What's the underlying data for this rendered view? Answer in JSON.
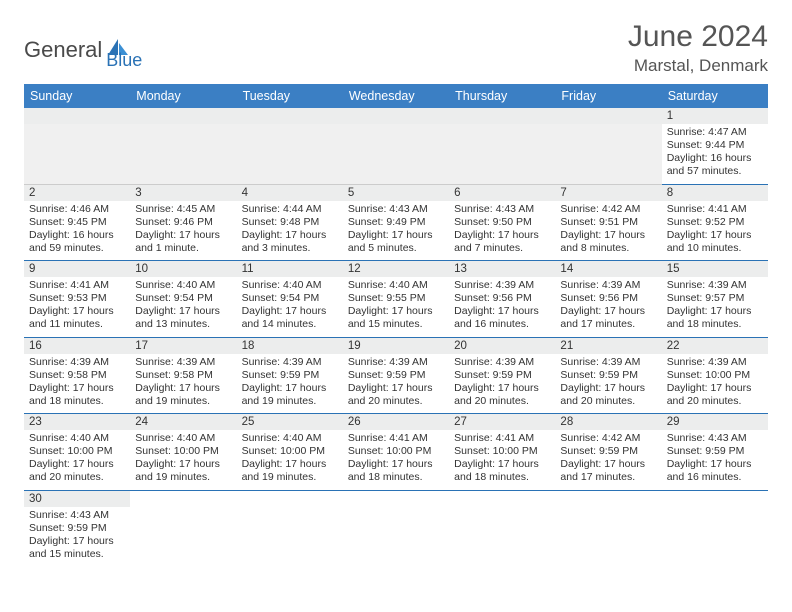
{
  "logo": {
    "text1": "General",
    "text2": "Blue"
  },
  "title": "June 2024",
  "location": "Marstal, Denmark",
  "colors": {
    "header_bg": "#3b7fc4",
    "header_text": "#ffffff",
    "daynum_bg": "#eceded",
    "border": "#2a72b5",
    "empty_bg": "#f0f0f0",
    "logo_gray": "#4a4a4a",
    "logo_blue": "#2a72b5"
  },
  "weekdays": [
    "Sunday",
    "Monday",
    "Tuesday",
    "Wednesday",
    "Thursday",
    "Friday",
    "Saturday"
  ],
  "blank_cells_before": 6,
  "days": [
    {
      "n": 1,
      "sunrise": "4:47 AM",
      "sunset": "9:44 PM",
      "daylight": "16 hours and 57 minutes."
    },
    {
      "n": 2,
      "sunrise": "4:46 AM",
      "sunset": "9:45 PM",
      "daylight": "16 hours and 59 minutes."
    },
    {
      "n": 3,
      "sunrise": "4:45 AM",
      "sunset": "9:46 PM",
      "daylight": "17 hours and 1 minute."
    },
    {
      "n": 4,
      "sunrise": "4:44 AM",
      "sunset": "9:48 PM",
      "daylight": "17 hours and 3 minutes."
    },
    {
      "n": 5,
      "sunrise": "4:43 AM",
      "sunset": "9:49 PM",
      "daylight": "17 hours and 5 minutes."
    },
    {
      "n": 6,
      "sunrise": "4:43 AM",
      "sunset": "9:50 PM",
      "daylight": "17 hours and 7 minutes."
    },
    {
      "n": 7,
      "sunrise": "4:42 AM",
      "sunset": "9:51 PM",
      "daylight": "17 hours and 8 minutes."
    },
    {
      "n": 8,
      "sunrise": "4:41 AM",
      "sunset": "9:52 PM",
      "daylight": "17 hours and 10 minutes."
    },
    {
      "n": 9,
      "sunrise": "4:41 AM",
      "sunset": "9:53 PM",
      "daylight": "17 hours and 11 minutes."
    },
    {
      "n": 10,
      "sunrise": "4:40 AM",
      "sunset": "9:54 PM",
      "daylight": "17 hours and 13 minutes."
    },
    {
      "n": 11,
      "sunrise": "4:40 AM",
      "sunset": "9:54 PM",
      "daylight": "17 hours and 14 minutes."
    },
    {
      "n": 12,
      "sunrise": "4:40 AM",
      "sunset": "9:55 PM",
      "daylight": "17 hours and 15 minutes."
    },
    {
      "n": 13,
      "sunrise": "4:39 AM",
      "sunset": "9:56 PM",
      "daylight": "17 hours and 16 minutes."
    },
    {
      "n": 14,
      "sunrise": "4:39 AM",
      "sunset": "9:56 PM",
      "daylight": "17 hours and 17 minutes."
    },
    {
      "n": 15,
      "sunrise": "4:39 AM",
      "sunset": "9:57 PM",
      "daylight": "17 hours and 18 minutes."
    },
    {
      "n": 16,
      "sunrise": "4:39 AM",
      "sunset": "9:58 PM",
      "daylight": "17 hours and 18 minutes."
    },
    {
      "n": 17,
      "sunrise": "4:39 AM",
      "sunset": "9:58 PM",
      "daylight": "17 hours and 19 minutes."
    },
    {
      "n": 18,
      "sunrise": "4:39 AM",
      "sunset": "9:59 PM",
      "daylight": "17 hours and 19 minutes."
    },
    {
      "n": 19,
      "sunrise": "4:39 AM",
      "sunset": "9:59 PM",
      "daylight": "17 hours and 20 minutes."
    },
    {
      "n": 20,
      "sunrise": "4:39 AM",
      "sunset": "9:59 PM",
      "daylight": "17 hours and 20 minutes."
    },
    {
      "n": 21,
      "sunrise": "4:39 AM",
      "sunset": "9:59 PM",
      "daylight": "17 hours and 20 minutes."
    },
    {
      "n": 22,
      "sunrise": "4:39 AM",
      "sunset": "10:00 PM",
      "daylight": "17 hours and 20 minutes."
    },
    {
      "n": 23,
      "sunrise": "4:40 AM",
      "sunset": "10:00 PM",
      "daylight": "17 hours and 20 minutes."
    },
    {
      "n": 24,
      "sunrise": "4:40 AM",
      "sunset": "10:00 PM",
      "daylight": "17 hours and 19 minutes."
    },
    {
      "n": 25,
      "sunrise": "4:40 AM",
      "sunset": "10:00 PM",
      "daylight": "17 hours and 19 minutes."
    },
    {
      "n": 26,
      "sunrise": "4:41 AM",
      "sunset": "10:00 PM",
      "daylight": "17 hours and 18 minutes."
    },
    {
      "n": 27,
      "sunrise": "4:41 AM",
      "sunset": "10:00 PM",
      "daylight": "17 hours and 18 minutes."
    },
    {
      "n": 28,
      "sunrise": "4:42 AM",
      "sunset": "9:59 PM",
      "daylight": "17 hours and 17 minutes."
    },
    {
      "n": 29,
      "sunrise": "4:43 AM",
      "sunset": "9:59 PM",
      "daylight": "17 hours and 16 minutes."
    },
    {
      "n": 30,
      "sunrise": "4:43 AM",
      "sunset": "9:59 PM",
      "daylight": "17 hours and 15 minutes."
    }
  ],
  "labels": {
    "sunrise_prefix": "Sunrise: ",
    "sunset_prefix": "Sunset: ",
    "daylight_prefix": "Daylight: "
  }
}
